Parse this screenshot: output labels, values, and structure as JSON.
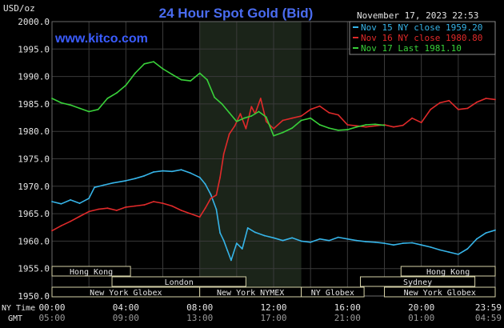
{
  "header": {
    "unit_label": "USD/oz",
    "title": "24 Hour Spot Gold (Bid)",
    "timestamp": "November 17, 2023 22:53",
    "site": "www.kitco.com"
  },
  "colors": {
    "background": "#000000",
    "title": "#4a6cf0",
    "site": "#3a5cff",
    "text": "#e6e6e6",
    "grid": "#3a3a3a",
    "shade": "#1b2419",
    "nov15": "#36b4e8",
    "nov16": "#e02a2a",
    "nov17": "#39d13a",
    "session_box_fill": "#000000",
    "session_box_stroke": "#d6d2a8"
  },
  "chart_data": {
    "type": "line",
    "title": "24 Hour Spot Gold (Bid)",
    "ylabel": "USD/oz",
    "ylim": [
      1950,
      2000
    ],
    "xlim_hours": [
      0,
      24
    ],
    "yticks": [
      "1950.0",
      "1955.0",
      "1960.0",
      "1965.0",
      "1970.0",
      "1975.0",
      "1980.0",
      "1985.0",
      "1990.0",
      "1995.0",
      "2000.0"
    ],
    "xticks_ny": [
      "00:00",
      "04:00",
      "08:00",
      "12:00",
      "16:00",
      "20:00",
      "23:59"
    ],
    "xticks_gmt": [
      "05:00",
      "09:00",
      "13:00",
      "17:00",
      "21:00",
      "01:00",
      "04:59"
    ],
    "x_axis_labels": [
      "NY Time",
      "GMT"
    ],
    "grid": true,
    "legend_position": "top-right",
    "shaded_hours": [
      8,
      13.5
    ],
    "sessions": [
      {
        "name": "Hong Kong",
        "start": 0,
        "end": 4.25,
        "row": 0
      },
      {
        "name": "Hong Kong",
        "start": 18.9,
        "end": 24,
        "row": 0
      },
      {
        "name": "London",
        "start": 3.25,
        "end": 10.5,
        "row": 1
      },
      {
        "name": "Sydney",
        "start": 16.7,
        "end": 22.9,
        "row": 1
      },
      {
        "name": "New York Globex",
        "start": 0,
        "end": 8,
        "row": 2
      },
      {
        "name": "New York NYMEX",
        "start": 8,
        "end": 13.5,
        "row": 2
      },
      {
        "name": "NY Globex",
        "start": 13.5,
        "end": 16.9,
        "row": 2
      },
      {
        "name": "New York Globex",
        "start": 18,
        "end": 24,
        "row": 2
      }
    ],
    "series": [
      {
        "name": "Nov 15 NY close 1959.20",
        "color": "#36b4e8",
        "x": [
          0,
          0.5,
          1,
          1.5,
          2,
          2.3,
          2.8,
          3.3,
          4,
          4.5,
          5,
          5.5,
          6,
          6.5,
          7,
          7.5,
          8,
          8.3,
          8.6,
          8.9,
          9.1,
          9.3,
          9.5,
          9.7,
          10,
          10.3,
          10.6,
          11,
          11.5,
          12,
          12.5,
          13,
          13.5,
          14,
          14.5,
          15,
          15.5,
          16,
          16.5,
          17,
          17.5,
          18,
          18.5,
          19,
          19.5,
          20,
          20.5,
          21,
          21.5,
          22,
          22.5,
          23,
          23.5,
          24
        ],
        "values": [
          1967.2,
          1966.8,
          1967.5,
          1966.9,
          1967.8,
          1969.8,
          1970.2,
          1970.6,
          1971.0,
          1971.4,
          1971.9,
          1972.6,
          1972.8,
          1972.7,
          1973.0,
          1972.4,
          1971.6,
          1970.4,
          1968.5,
          1965.8,
          1961.5,
          1960.1,
          1958.3,
          1956.5,
          1959.6,
          1958.6,
          1962.4,
          1961.6,
          1961.0,
          1960.6,
          1960.1,
          1960.6,
          1960.0,
          1959.8,
          1960.4,
          1960.1,
          1960.7,
          1960.4,
          1960.1,
          1959.9,
          1959.8,
          1959.6,
          1959.3,
          1959.6,
          1959.7,
          1959.3,
          1958.9,
          1958.4,
          1958.0,
          1957.6,
          1958.6,
          1960.4,
          1961.5,
          1962.0
        ]
      },
      {
        "name": "Nov 16 NY close 1980.80",
        "color": "#e02a2a",
        "x": [
          0,
          0.5,
          1,
          1.5,
          2,
          2.5,
          3,
          3.5,
          4,
          4.5,
          5,
          5.5,
          6,
          6.5,
          7,
          7.5,
          8,
          8.3,
          8.6,
          8.9,
          9.1,
          9.3,
          9.6,
          9.9,
          10.2,
          10.5,
          10.8,
          11,
          11.3,
          11.6,
          12,
          12.5,
          13,
          13.5,
          14,
          14.5,
          15,
          15.5,
          16,
          16.5,
          17,
          17.5,
          18,
          18.5,
          19,
          19.5,
          20,
          20.5,
          21,
          21.5,
          22,
          22.5,
          23,
          23.5,
          24
        ],
        "values": [
          1961.9,
          1962.8,
          1963.6,
          1964.5,
          1965.4,
          1965.8,
          1966.0,
          1965.6,
          1966.2,
          1966.4,
          1966.6,
          1967.2,
          1966.9,
          1966.4,
          1965.6,
          1965.0,
          1964.4,
          1966.0,
          1967.8,
          1968.4,
          1971.6,
          1975.9,
          1979.5,
          1981.0,
          1983.2,
          1980.5,
          1984.5,
          1983.2,
          1986.0,
          1981.8,
          1980.5,
          1982.0,
          1982.4,
          1982.8,
          1984.0,
          1984.6,
          1983.4,
          1983.0,
          1981.2,
          1981.0,
          1980.8,
          1981.0,
          1981.2,
          1980.8,
          1981.1,
          1982.4,
          1981.6,
          1984.0,
          1985.2,
          1985.6,
          1984.0,
          1984.2,
          1985.3,
          1986.0,
          1985.8
        ]
      },
      {
        "name": "Nov 17 Last 1981.10",
        "color": "#39d13a",
        "x": [
          0,
          0.5,
          1,
          1.5,
          2,
          2.5,
          3,
          3.5,
          4,
          4.5,
          5,
          5.5,
          6,
          6.5,
          7,
          7.5,
          8,
          8.4,
          8.8,
          9.2,
          9.6,
          10,
          10.4,
          10.8,
          11.2,
          11.6,
          12,
          12.5,
          13,
          13.5,
          14,
          14.5,
          15,
          15.5,
          16,
          16.5,
          17,
          17.5,
          18
        ],
        "values": [
          1986.0,
          1985.2,
          1984.8,
          1984.2,
          1983.6,
          1984.0,
          1986.0,
          1987.0,
          1988.4,
          1990.6,
          1992.3,
          1992.7,
          1991.4,
          1990.4,
          1989.4,
          1989.2,
          1990.6,
          1989.4,
          1986.2,
          1985.0,
          1983.4,
          1981.8,
          1982.4,
          1982.8,
          1983.6,
          1982.6,
          1979.2,
          1979.8,
          1980.6,
          1982.0,
          1982.4,
          1981.2,
          1980.6,
          1980.2,
          1980.3,
          1980.8,
          1981.2,
          1981.3,
          1981.1
        ]
      }
    ]
  }
}
